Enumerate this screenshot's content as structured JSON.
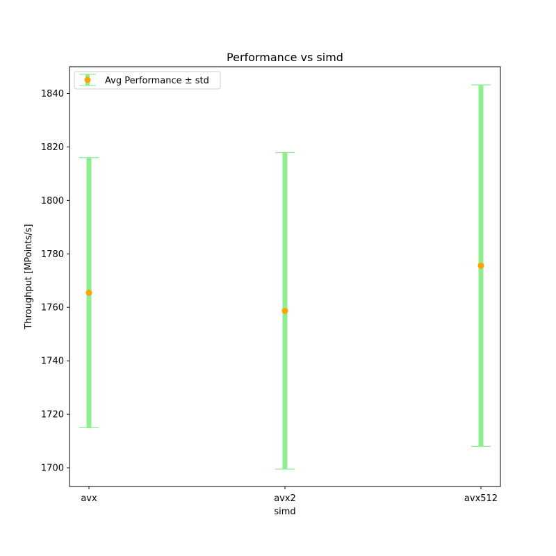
{
  "chart_data": {
    "type": "scatter",
    "title": "Performance vs simd",
    "xlabel": "simd",
    "ylabel": "Throughput [MPoints/s]",
    "categories": [
      "avx",
      "avx2",
      "avx512"
    ],
    "series": [
      {
        "name": "Avg Performance ± std",
        "values": [
          1765.5,
          1758.7,
          1775.6
        ],
        "std": [
          50.5,
          59.2,
          67.6
        ]
      }
    ],
    "ylim": [
      1693,
      1850
    ],
    "yticks": [
      1700,
      1720,
      1740,
      1760,
      1780,
      1800,
      1820,
      1840
    ],
    "grid": false,
    "legend_position": "upper-left",
    "colors": {
      "marker": "#ffa500",
      "errorbar": "#90ee90",
      "axes": "#000000"
    }
  }
}
